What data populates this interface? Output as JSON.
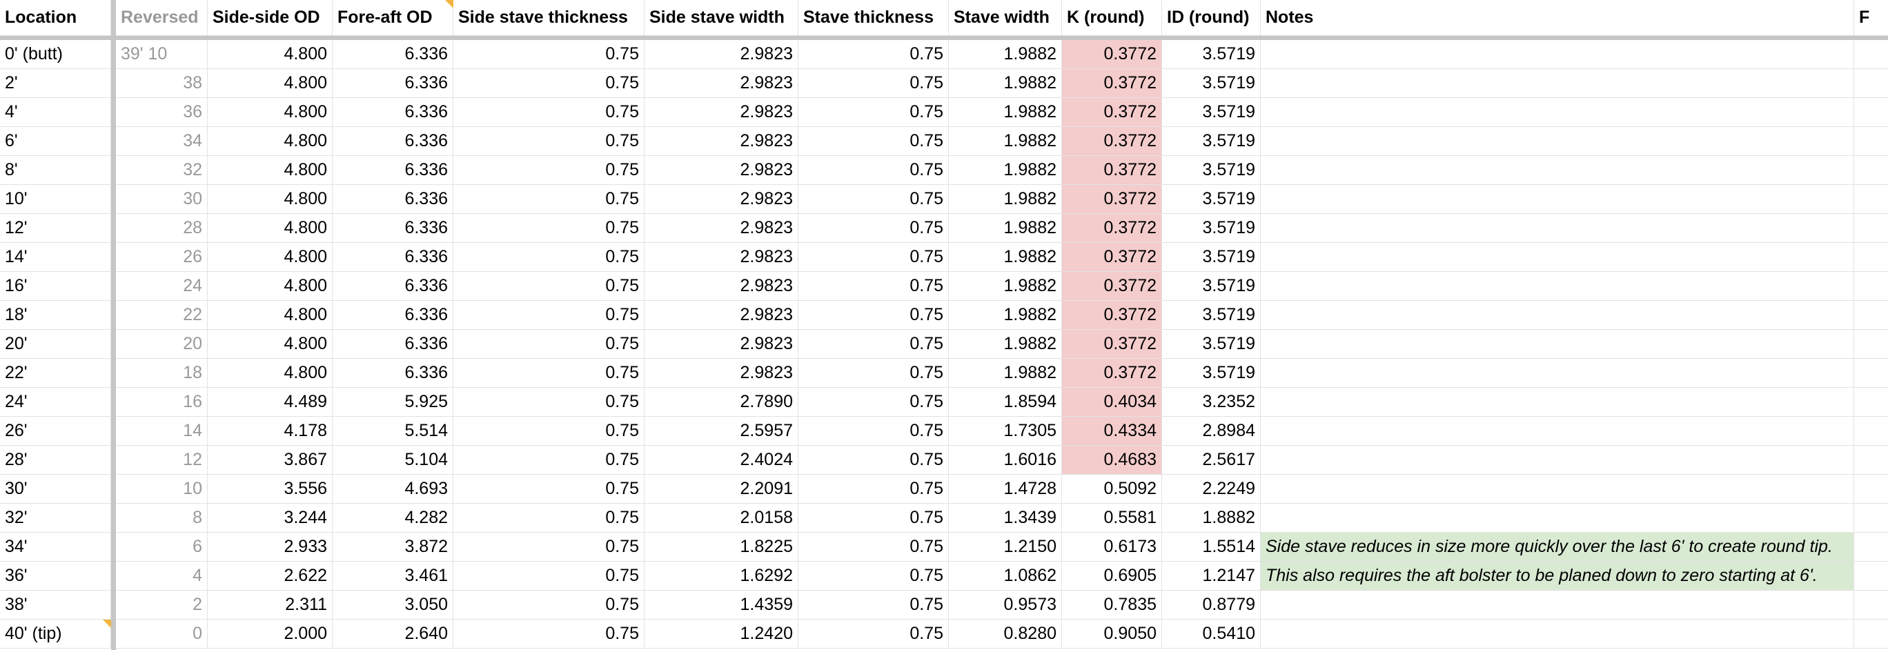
{
  "table": {
    "headers": [
      "Location",
      "Reversed",
      "Side-side OD",
      "Fore-aft OD",
      "Side stave thickness",
      "Side stave width",
      "Stave thickness",
      "Stave width",
      "K (round)",
      "ID (round)",
      "Notes",
      "F"
    ],
    "rows": [
      {
        "cells": [
          "0' (butt)",
          "39' 10",
          "4.800",
          "6.336",
          "0.75",
          "2.9823",
          "0.75",
          "1.9882",
          "0.3772",
          "3.5719"
        ],
        "k_color": "#f4cccc"
      },
      {
        "cells": [
          "2'",
          "38",
          "4.800",
          "6.336",
          "0.75",
          "2.9823",
          "0.75",
          "1.9882",
          "0.3772",
          "3.5719"
        ],
        "k_color": "#f4cccc"
      },
      {
        "cells": [
          "4'",
          "36",
          "4.800",
          "6.336",
          "0.75",
          "2.9823",
          "0.75",
          "1.9882",
          "0.3772",
          "3.5719"
        ],
        "k_color": "#f4cccc"
      },
      {
        "cells": [
          "6'",
          "34",
          "4.800",
          "6.336",
          "0.75",
          "2.9823",
          "0.75",
          "1.9882",
          "0.3772",
          "3.5719"
        ],
        "k_color": "#f4cccc"
      },
      {
        "cells": [
          "8'",
          "32",
          "4.800",
          "6.336",
          "0.75",
          "2.9823",
          "0.75",
          "1.9882",
          "0.3772",
          "3.5719"
        ],
        "k_color": "#f4cccc"
      },
      {
        "cells": [
          "10'",
          "30",
          "4.800",
          "6.336",
          "0.75",
          "2.9823",
          "0.75",
          "1.9882",
          "0.3772",
          "3.5719"
        ],
        "k_color": "#f4cccc"
      },
      {
        "cells": [
          "12'",
          "28",
          "4.800",
          "6.336",
          "0.75",
          "2.9823",
          "0.75",
          "1.9882",
          "0.3772",
          "3.5719"
        ],
        "k_color": "#f4cccc"
      },
      {
        "cells": [
          "14'",
          "26",
          "4.800",
          "6.336",
          "0.75",
          "2.9823",
          "0.75",
          "1.9882",
          "0.3772",
          "3.5719"
        ],
        "k_color": "#f4cccc"
      },
      {
        "cells": [
          "16'",
          "24",
          "4.800",
          "6.336",
          "0.75",
          "2.9823",
          "0.75",
          "1.9882",
          "0.3772",
          "3.5719"
        ],
        "k_color": "#f4cccc"
      },
      {
        "cells": [
          "18'",
          "22",
          "4.800",
          "6.336",
          "0.75",
          "2.9823",
          "0.75",
          "1.9882",
          "0.3772",
          "3.5719"
        ],
        "k_color": "#f4cccc"
      },
      {
        "cells": [
          "20'",
          "20",
          "4.800",
          "6.336",
          "0.75",
          "2.9823",
          "0.75",
          "1.9882",
          "0.3772",
          "3.5719"
        ],
        "k_color": "#f4cccc"
      },
      {
        "cells": [
          "22'",
          "18",
          "4.800",
          "6.336",
          "0.75",
          "2.9823",
          "0.75",
          "1.9882",
          "0.3772",
          "3.5719"
        ],
        "k_color": "#f4cccc"
      },
      {
        "cells": [
          "24'",
          "16",
          "4.489",
          "5.925",
          "0.75",
          "2.7890",
          "0.75",
          "1.8594",
          "0.4034",
          "3.2352"
        ],
        "k_color": "#f4cccc"
      },
      {
        "cells": [
          "26'",
          "14",
          "4.178",
          "5.514",
          "0.75",
          "2.5957",
          "0.75",
          "1.7305",
          "0.4334",
          "2.8984"
        ],
        "k_color": "#f4cccc"
      },
      {
        "cells": [
          "28'",
          "12",
          "3.867",
          "5.104",
          "0.75",
          "2.4024",
          "0.75",
          "1.6016",
          "0.4683",
          "2.5617"
        ],
        "k_color": "#f4cccc"
      },
      {
        "cells": [
          "30'",
          "10",
          "3.556",
          "4.693",
          "0.75",
          "2.2091",
          "0.75",
          "1.4728",
          "0.5092",
          "2.2249"
        ]
      },
      {
        "cells": [
          "32'",
          "8",
          "3.244",
          "4.282",
          "0.75",
          "2.0158",
          "0.75",
          "1.3439",
          "0.5581",
          "1.8882"
        ]
      },
      {
        "cells": [
          "34'",
          "6",
          "2.933",
          "3.872",
          "0.75",
          "1.8225",
          "0.75",
          "1.2150",
          "0.6173",
          "1.5514"
        ],
        "note": "Side stave reduces in size more quickly over the last 6' to create round tip.",
        "note_color": "#d9ead3"
      },
      {
        "cells": [
          "36'",
          "4",
          "2.622",
          "3.461",
          "0.75",
          "1.6292",
          "0.75",
          "1.0862",
          "0.6905",
          "1.2147"
        ],
        "note": "This also requires the aft bolster to be planed down to zero starting at 6'.",
        "note_color": "#d9ead3"
      },
      {
        "cells": [
          "38'",
          "2",
          "2.311",
          "3.050",
          "0.75",
          "1.4359",
          "0.75",
          "0.9573",
          "0.7835",
          "0.8779"
        ]
      },
      {
        "cells": [
          "40' (tip)",
          "0",
          "2.000",
          "2.640",
          "0.75",
          "1.2420",
          "0.75",
          "0.8280",
          "0.9050",
          "0.5410"
        ]
      }
    ]
  }
}
